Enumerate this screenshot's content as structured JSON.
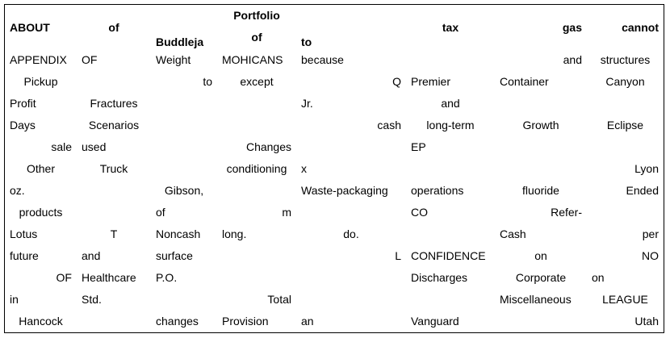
{
  "header": {
    "c0": "ABOUT",
    "c1": "of",
    "c2": "Buddleja",
    "c3_top": "Portfolio",
    "c3_bottom": "of",
    "c4": "to",
    "c5": "tax",
    "c6": "gas",
    "c7": "cannot"
  },
  "rows": [
    [
      "APPENDIX",
      "OF",
      "Weight",
      "MOHICANS",
      "because",
      "",
      "and",
      "structures"
    ],
    [
      "Pickup",
      "",
      "to",
      "except",
      "Q",
      "Premier",
      "Container",
      "Canyon"
    ],
    [
      "Profit",
      "Fractures",
      "",
      "",
      "Jr.",
      "and",
      "",
      ""
    ],
    [
      "Days",
      "Scenarios",
      "",
      "",
      "cash",
      "long-term",
      "Growth",
      "Eclipse"
    ],
    [
      "sale",
      "used",
      "",
      "Changes",
      "",
      "EP",
      "",
      ""
    ],
    [
      "Other",
      "Truck",
      "",
      "conditioning",
      "x",
      "",
      "",
      "Lyon"
    ],
    [
      "oz.",
      "",
      "Gibson,",
      "",
      "Waste-packaging",
      "operations",
      "fluoride",
      "Ended"
    ],
    [
      "products",
      "",
      "of",
      "m",
      "",
      "CO",
      "Refer-",
      ""
    ],
    [
      "Lotus",
      "T",
      "Noncash",
      "long.",
      "do.",
      "",
      "Cash",
      "per"
    ],
    [
      "future",
      "and",
      "surface",
      "",
      "L",
      "CONFIDENCE",
      "on",
      "NO"
    ],
    [
      "OF",
      "Healthcare",
      "P.O.",
      "",
      "",
      "Discharges",
      "Corporate",
      "on"
    ],
    [
      "in",
      "Std.",
      "",
      "Total",
      "",
      "",
      "Miscellaneous",
      "LEAGUE"
    ],
    [
      "Hancock",
      "",
      "changes",
      "Provision",
      "an",
      "Vanguard",
      "",
      "Utah"
    ]
  ]
}
